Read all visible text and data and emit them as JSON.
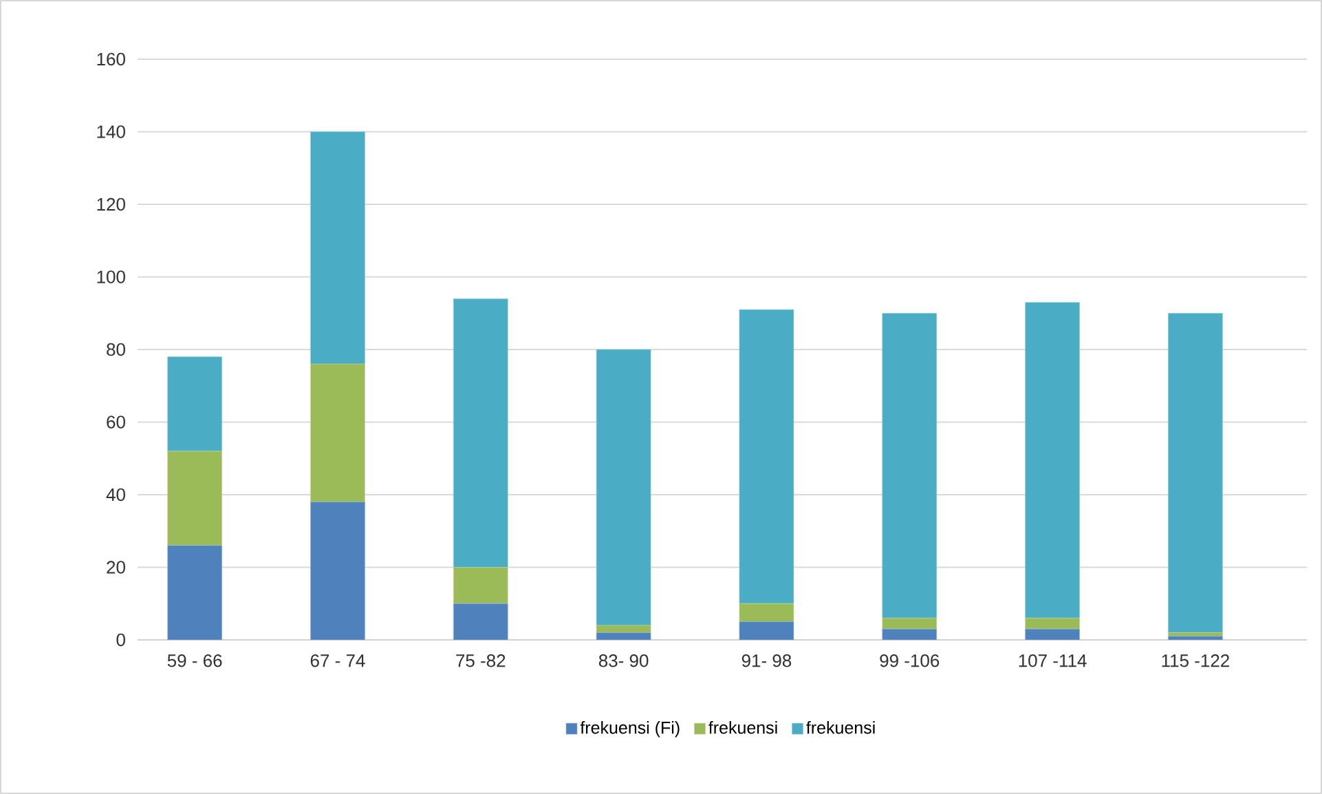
{
  "chart_data": {
    "type": "bar",
    "stacked": true,
    "categories": [
      "59 - 66",
      "67 - 74",
      "75 -82",
      "83- 90",
      "91- 98",
      "99 -106",
      "107 -114",
      "115 -122"
    ],
    "series": [
      {
        "name": "frekuensi (Fi)",
        "color": "#4f81bd",
        "values": [
          26,
          38,
          10,
          2,
          5,
          3,
          3,
          1
        ]
      },
      {
        "name": "frekuensi",
        "color": "#9bbb59",
        "values": [
          26,
          38,
          10,
          2,
          5,
          3,
          3,
          1
        ]
      },
      {
        "name": "frekuensi",
        "color": "#4bacc6",
        "values": [
          26,
          64,
          74,
          76,
          81,
          84,
          87,
          88
        ]
      }
    ],
    "ylim": [
      0,
      160
    ],
    "yticks": [
      0,
      20,
      40,
      60,
      80,
      100,
      120,
      140,
      160
    ],
    "grid": "y",
    "legend": "bottom"
  }
}
